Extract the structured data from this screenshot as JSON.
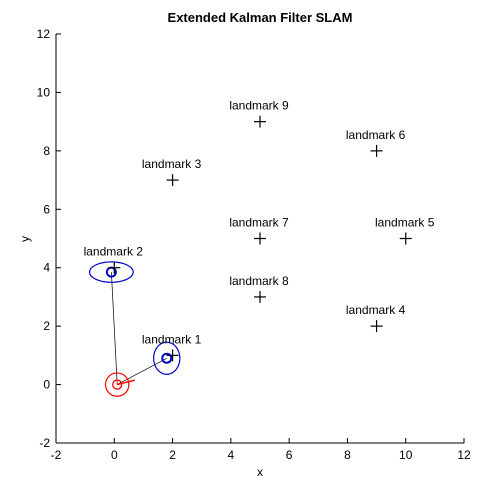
{
  "chart_data": {
    "type": "scatter",
    "title": "Extended Kalman Filter SLAM",
    "xlabel": "x",
    "ylabel": "y",
    "xlim": [
      -2,
      12
    ],
    "ylim": [
      -2,
      12
    ],
    "xticks": [
      "-2",
      "0",
      "2",
      "4",
      "6",
      "8",
      "10",
      "12"
    ],
    "yticks": [
      "-2",
      "0",
      "2",
      "4",
      "6",
      "8",
      "10",
      "12"
    ],
    "grid": false,
    "landmarks": [
      {
        "label": "landmark 1",
        "x": 2,
        "y": 1
      },
      {
        "label": "landmark 2",
        "x": 0,
        "y": 4
      },
      {
        "label": "landmark 3",
        "x": 2,
        "y": 7
      },
      {
        "label": "landmark 4",
        "x": 9,
        "y": 2
      },
      {
        "label": "landmark 5",
        "x": 10,
        "y": 5
      },
      {
        "label": "landmark 6",
        "x": 9,
        "y": 8
      },
      {
        "label": "landmark 7",
        "x": 5,
        "y": 5
      },
      {
        "label": "landmark 8",
        "x": 5,
        "y": 3
      },
      {
        "label": "landmark 9",
        "x": 5,
        "y": 9
      }
    ],
    "robot": {
      "x": 0.1,
      "y": 0.0,
      "heading_end": [
        0.7,
        0.15
      ],
      "covariance_rx": 0.4,
      "covariance_ry": 0.4,
      "color": "#ff0000"
    },
    "landmark_estimates": [
      {
        "x": 1.8,
        "y": 0.9,
        "covariance_rx": 0.45,
        "covariance_ry": 0.55,
        "color": "#0000cc"
      },
      {
        "x": -0.1,
        "y": 3.85,
        "covariance_rx": 0.75,
        "covariance_ry": 0.35,
        "color": "#0000cc"
      }
    ]
  }
}
